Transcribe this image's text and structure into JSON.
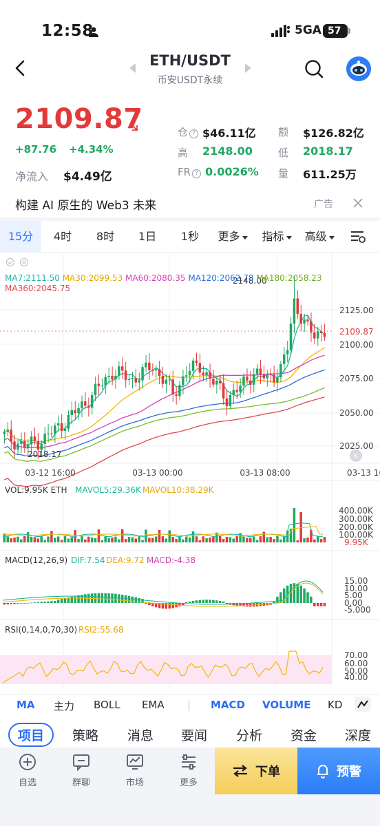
{
  "status_bar": {
    "time": "12:58",
    "network": "5GA",
    "battery": "57"
  },
  "header": {
    "pair": "ETH/USDT",
    "subtitle": "币安USDT永续"
  },
  "price": {
    "last": "2109.87",
    "change": "+87.76",
    "change_pct": "+4.34%",
    "net_inflow_label": "净流入",
    "net_inflow_value": "$4.49亿"
  },
  "stats": {
    "oi_label": "仓",
    "oi_value": "$46.11亿",
    "amount_label": "额",
    "amount_value": "$126.82亿",
    "high_label": "高",
    "high_value": "2148.00",
    "low_label": "低",
    "low_value": "2018.17",
    "fr_label": "FR",
    "fr_value": "0.0026%",
    "vol_label": "量",
    "vol_value": "611.25万"
  },
  "ad": {
    "text": "构建 AI 原生的 Web3 未来",
    "tag": "广告"
  },
  "intervals": {
    "items": [
      "15分",
      "4时",
      "8时",
      "1日",
      "1秒",
      "更多",
      "指标",
      "高级"
    ],
    "active": "15分"
  },
  "chart": {
    "ma_line1": [
      {
        "text": "MA7:2111.50",
        "color": "#19b8a0"
      },
      {
        "text": "MA30:2099.53",
        "color": "#f2b705"
      },
      {
        "text": "MA60:2080.35",
        "color": "#d63fb7"
      },
      {
        "text": "MA120:2062.78",
        "color": "#2b6ecf"
      },
      {
        "text": "MA180:2058.23",
        "color": "#7cbb2a"
      }
    ],
    "ma_line2": {
      "text": "MA360:2045.75",
      "color": "#e2484f"
    },
    "high_mark": "2148.00",
    "low_mark": "2018.17",
    "price_tag": "2109.87",
    "y_ticks": [
      "2125.00",
      "2100.00",
      "2075.00",
      "2050.00",
      "2025.00"
    ],
    "x_ticks": [
      "03-12 16:00",
      "03-13 00:00",
      "03-13 08:00",
      "03-13 16"
    ],
    "vol": {
      "label": "VOL:9.95K ETH",
      "mavol5": "MAVOL5:29.36K",
      "mavol10": "MAVOL10:38.29K",
      "ticks": [
        "400.00K",
        "300.00K",
        "200.00K",
        "100.00K"
      ],
      "tag": "9.95K"
    },
    "macd": {
      "label": "MACD(12,26,9)",
      "dif": "DIF:7.54",
      "dea": "DEA:9.72",
      "macd": "MACD:-4.38",
      "ticks": [
        "15.00",
        "10.00",
        "5.00",
        "0.00",
        "-5.000"
      ]
    },
    "rsi": {
      "label": "RSI(0,14,0,70,30)",
      "rsi2": "RSI2:55.68",
      "ticks": [
        "70.00",
        "60.00",
        "50.00",
        "40.00"
      ]
    }
  },
  "indicators": [
    "MA",
    "主力",
    "BOLL",
    "EMA",
    "MACD",
    "VOLUME",
    "KD"
  ],
  "sections": [
    "项目",
    "策略",
    "消息",
    "要闻",
    "分析",
    "资金",
    "深度"
  ],
  "nav": [
    "自选",
    "群聊",
    "市场",
    "更多"
  ],
  "actions": {
    "order": "下单",
    "alert": "预警"
  },
  "colors": {
    "up": "#e23a3a",
    "down": "#20a862",
    "accent": "#2b6ef5"
  }
}
